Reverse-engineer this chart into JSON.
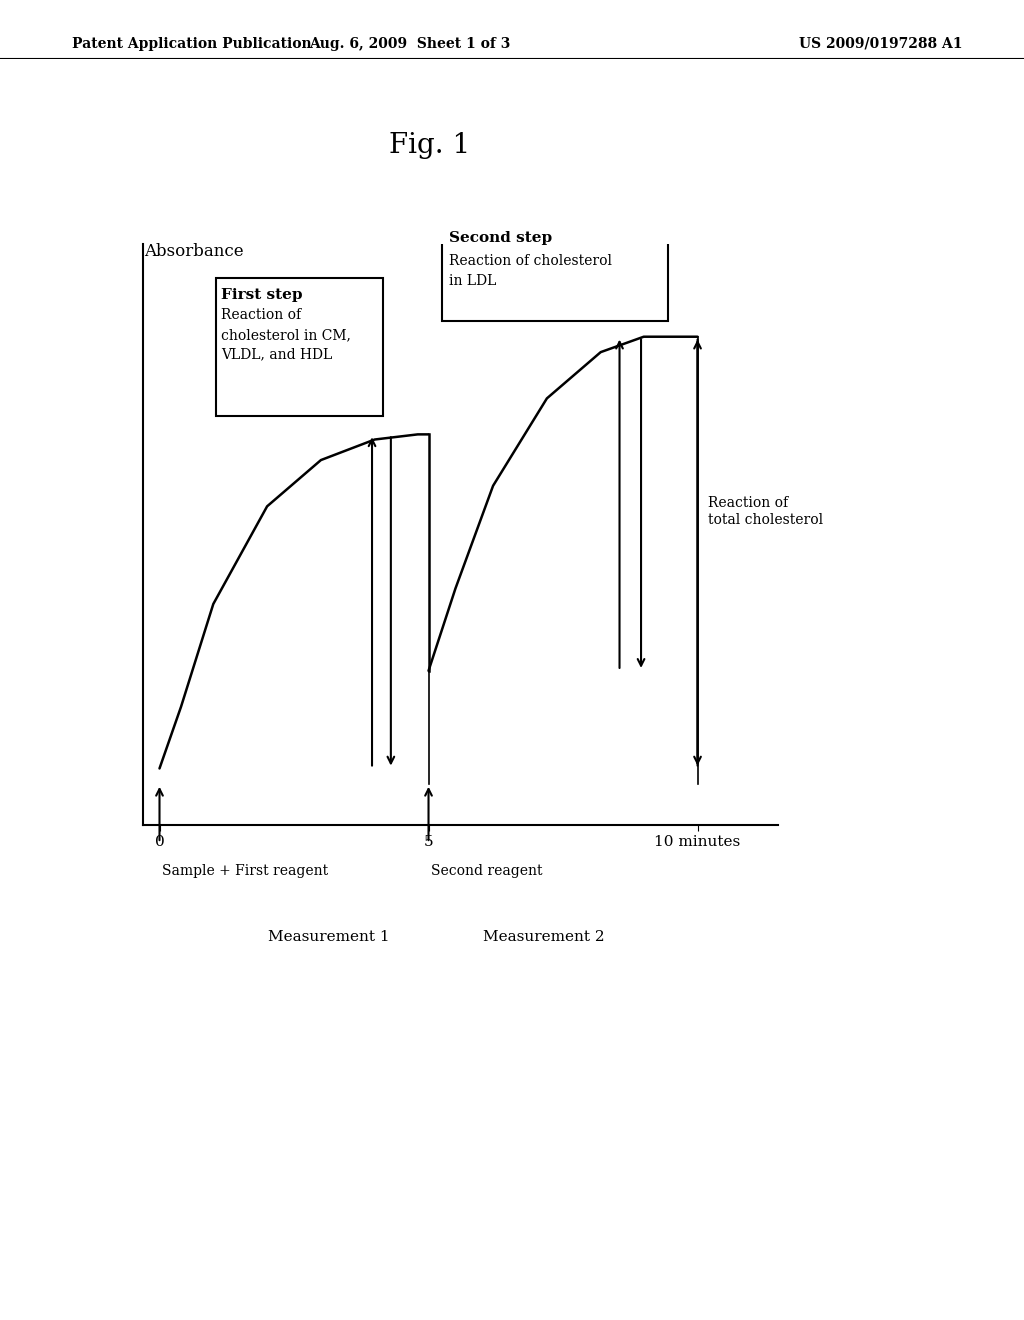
{
  "fig_label": "Fig. 1",
  "header_left": "Patent Application Publication",
  "header_center": "Aug. 6, 2009  Sheet 1 of 3",
  "header_right": "US 2009/0197288 A1",
  "ylabel": "Absorbance",
  "box1_title": "First step",
  "box1_body": "Reaction of\ncholesterol in CM,\nVLDL, and HDL",
  "box2_title": "Second step",
  "box2_body": "Reaction of cholesterol\nin LDL",
  "label_sample": "Sample + First reagent",
  "label_second_reagent": "Second reagent",
  "label_measurement1": "Measurement 1",
  "label_measurement2": "Measurement 2",
  "label_reaction_total": "Reaction of\ntotal cholesterol",
  "background_color": "#ffffff",
  "line_color": "#000000"
}
